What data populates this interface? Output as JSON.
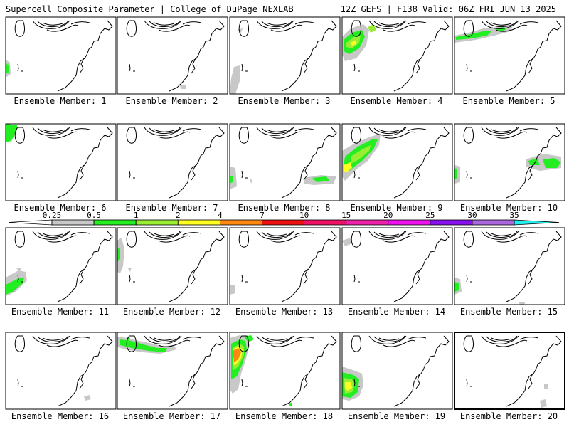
{
  "header": {
    "left": "Supercell Composite Parameter | College of DuPage NEXLAB",
    "right": "12Z GEFS | F138 Valid: 06Z FRI JUN 13 2025"
  },
  "members": [
    {
      "label": "Ensemble Member: 1"
    },
    {
      "label": "Ensemble Member: 2"
    },
    {
      "label": "Ensemble Member: 3"
    },
    {
      "label": "Ensemble Member: 4"
    },
    {
      "label": "Ensemble Member: 5"
    },
    {
      "label": "Ensemble Member: 6"
    },
    {
      "label": "Ensemble Member: 7"
    },
    {
      "label": "Ensemble Member: 8"
    },
    {
      "label": "Ensemble Member: 9"
    },
    {
      "label": "Ensemble Member: 10"
    },
    {
      "label": "Ensemble Member: 11"
    },
    {
      "label": "Ensemble Member: 12"
    },
    {
      "label": "Ensemble Member: 13"
    },
    {
      "label": "Ensemble Member: 14"
    },
    {
      "label": "Ensemble Member: 15"
    },
    {
      "label": "Ensemble Member: 16"
    },
    {
      "label": "Ensemble Member: 17"
    },
    {
      "label": "Ensemble Member: 18"
    },
    {
      "label": "Ensemble Member: 19"
    },
    {
      "label": "Ensemble Member: 20"
    }
  ],
  "colorbar": {
    "labels": [
      "0.25",
      "0.5",
      "1",
      "2",
      "4",
      "7",
      "10",
      "15",
      "20",
      "25",
      "30",
      "35"
    ],
    "colors": [
      "#c8c8c8",
      "#22ee22",
      "#99ee33",
      "#ffff22",
      "#ff8811",
      "#ee1111",
      "#ee1166",
      "#ee22aa",
      "#ee11ee",
      "#8811ee",
      "#aa66dd",
      "#22eeee"
    ]
  }
}
